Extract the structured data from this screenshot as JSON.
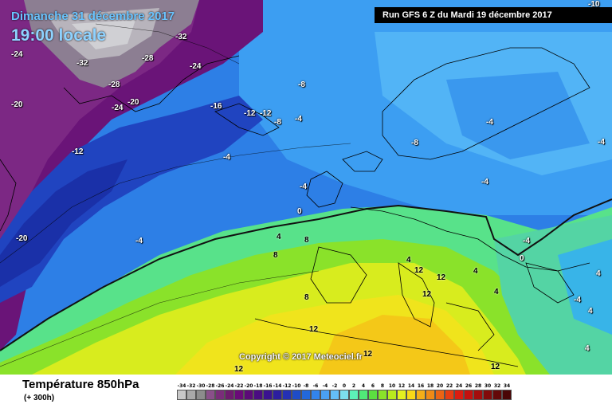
{
  "header": {
    "date": "Dimanche 31 décembre 2017",
    "time": "19:00 locale",
    "run": "Run GFS 6 Z du Mardi 19 décembre 2017"
  },
  "copyright": "Copyright © 2017 Meteociel.fr",
  "footer": {
    "title": "Température 850hPa",
    "subtitle": "(+ 300h)"
  },
  "legend": {
    "ticks": [
      "-34",
      "-32",
      "-30",
      "-28",
      "-26",
      "-24",
      "-22",
      "-20",
      "-18",
      "-16",
      "-14",
      "-12",
      "-10",
      "-8",
      "-6",
      "-4",
      "-2",
      "0",
      "2",
      "4",
      "6",
      "8",
      "10",
      "12",
      "14",
      "16",
      "18",
      "20",
      "22",
      "24",
      "26",
      "28",
      "30",
      "32",
      "34"
    ],
    "colors": [
      "#c8c8c8",
      "#a9a9a9",
      "#8c8c8c",
      "#8a4f8a",
      "#7a2c7a",
      "#6e1a6e",
      "#6a0a78",
      "#5c0a78",
      "#4a0c82",
      "#3a1290",
      "#2c1ea0",
      "#2430b4",
      "#1e4cc8",
      "#2268dc",
      "#3284ec",
      "#4aa0f4",
      "#64bef8",
      "#7ce0ee",
      "#5cf0b8",
      "#50e878",
      "#5ce040",
      "#8ae22a",
      "#b8ea1e",
      "#e4f020",
      "#f8d818",
      "#f4ae18",
      "#f08a16",
      "#ec6414",
      "#e83c12",
      "#dc1c10",
      "#c4100e",
      "#a40c0c",
      "#820a0a",
      "#640808",
      "#4a0606"
    ]
  },
  "map_labels": [
    {
      "text": "-24"
    },
    {
      "text": "-32"
    },
    {
      "text": "-28"
    },
    {
      "text": "-24"
    },
    {
      "text": "-32"
    },
    {
      "text": "-28"
    },
    {
      "text": "-24"
    },
    {
      "text": "-20"
    },
    {
      "text": "-20"
    },
    {
      "text": "-16"
    },
    {
      "text": "-12"
    },
    {
      "text": "-12"
    },
    {
      "text": "-8"
    },
    {
      "text": "-8"
    },
    {
      "text": "-4"
    },
    {
      "text": "-12"
    },
    {
      "text": "-4"
    },
    {
      "text": "-4"
    },
    {
      "text": "-4"
    },
    {
      "text": "-8"
    },
    {
      "text": "-4"
    },
    {
      "text": "-4"
    },
    {
      "text": "-4"
    },
    {
      "text": "0"
    },
    {
      "text": "-20"
    },
    {
      "text": "-4"
    },
    {
      "text": "4"
    },
    {
      "text": "8"
    },
    {
      "text": "8"
    },
    {
      "text": "4"
    },
    {
      "text": "12"
    },
    {
      "text": "12"
    },
    {
      "text": "12"
    },
    {
      "text": "8"
    },
    {
      "text": "12"
    },
    {
      "text": "4"
    },
    {
      "text": "4"
    },
    {
      "text": "0"
    },
    {
      "text": "-4"
    },
    {
      "text": "4"
    },
    {
      "text": "4"
    },
    {
      "text": "4"
    },
    {
      "text": "12"
    },
    {
      "text": "12"
    },
    {
      "text": "12"
    },
    {
      "text": "-10"
    }
  ]
}
